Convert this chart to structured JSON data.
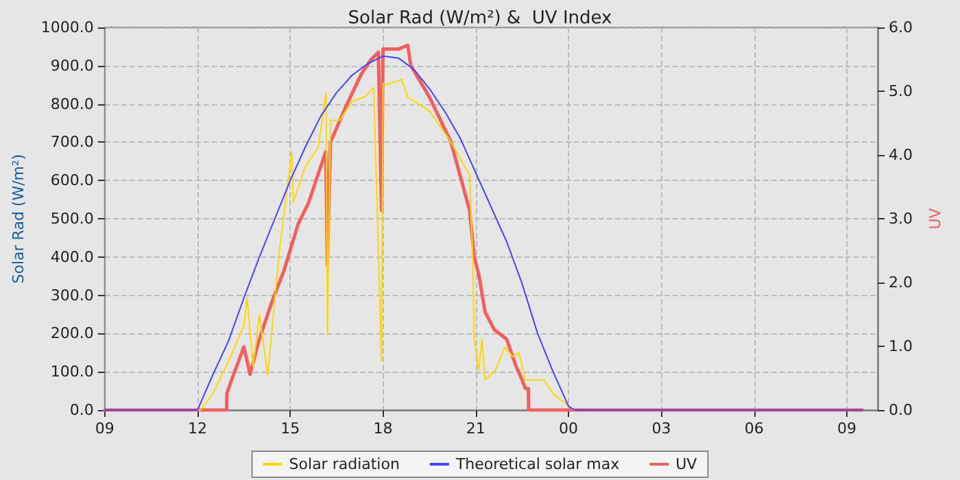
{
  "chart_data": {
    "type": "line",
    "title": "Solar Rad (W/m²) &  UV Index",
    "ylabel": "Solar Rad (W/m²)",
    "y2label": "UV",
    "xlim": [
      9,
      34
    ],
    "xticks": [
      {
        "value": 9,
        "label": "09"
      },
      {
        "value": 12,
        "label": "12"
      },
      {
        "value": 15,
        "label": "15"
      },
      {
        "value": 18,
        "label": "18"
      },
      {
        "value": 21,
        "label": "21"
      },
      {
        "value": 24,
        "label": "00"
      },
      {
        "value": 27,
        "label": "03"
      },
      {
        "value": 30,
        "label": "06"
      },
      {
        "value": 33,
        "label": "09"
      }
    ],
    "ylim": [
      0,
      1000
    ],
    "yticks": [
      {
        "value": 0,
        "label": "0.0"
      },
      {
        "value": 100,
        "label": "100.0"
      },
      {
        "value": 200,
        "label": "200.0"
      },
      {
        "value": 300,
        "label": "300.0"
      },
      {
        "value": 400,
        "label": "400.0"
      },
      {
        "value": 500,
        "label": "500.0"
      },
      {
        "value": 600,
        "label": "600.0"
      },
      {
        "value": 700,
        "label": "700.0"
      },
      {
        "value": 800,
        "label": "800.0"
      },
      {
        "value": 900,
        "label": "900.0"
      },
      {
        "value": 1000,
        "label": "1000.0"
      }
    ],
    "y2lim": [
      0,
      6
    ],
    "y2ticks": [
      {
        "value": 0,
        "label": "0.0"
      },
      {
        "value": 1,
        "label": "1.0"
      },
      {
        "value": 2,
        "label": "2.0"
      },
      {
        "value": 3,
        "label": "3.0"
      },
      {
        "value": 4,
        "label": "4.0"
      },
      {
        "value": 5,
        "label": "5.0"
      },
      {
        "value": 6,
        "label": "6.0"
      }
    ],
    "grid": true,
    "legend": "bottom",
    "marker": "none",
    "series": [
      {
        "name": "Solar radiation",
        "color": "#ffd700",
        "x": [
          9,
          12.1,
          12.5,
          13.07,
          13.5,
          13.6,
          13.8,
          14.0,
          14.27,
          14.66,
          14.9,
          15.05,
          15.1,
          15.5,
          15.9,
          16.16,
          16.2,
          16.3,
          16.6,
          17.0,
          17.4,
          17.7,
          17.95,
          18.0,
          18.1,
          18.6,
          18.8,
          19.5,
          20.2,
          20.8,
          20.9,
          20.95,
          21.1,
          21.2,
          21.3,
          21.64,
          21.94,
          22.2,
          22.4,
          22.6,
          23.2,
          23.5,
          24.1,
          24.2,
          33.5
        ],
        "values": [
          0,
          0,
          43,
          139,
          221,
          293,
          114,
          250,
          93,
          425,
          579,
          675,
          543,
          639,
          686,
          829,
          200,
          757,
          757,
          807,
          818,
          843,
          129,
          854,
          850,
          864,
          818,
          782,
          700,
          614,
          400,
          186,
          104,
          186,
          79,
          104,
          164,
          139,
          150,
          79,
          79,
          43,
          4,
          0,
          0
        ]
      },
      {
        "name": "Theoretical solar max",
        "color": "#4444ff",
        "x": [
          9,
          12,
          12.5,
          13,
          13.5,
          14,
          14.5,
          15,
          15.5,
          16,
          16.5,
          17,
          17.5,
          18,
          18.5,
          19,
          19.5,
          20,
          20.5,
          21,
          21.5,
          22,
          22.5,
          23,
          23.5,
          24,
          24.2,
          33.5
        ],
        "values": [
          0,
          0,
          93,
          180,
          293,
          400,
          500,
          600,
          690,
          770,
          830,
          875,
          905,
          925,
          920,
          890,
          840,
          780,
          710,
          620,
          530,
          440,
          330,
          200,
          100,
          10,
          0,
          0
        ]
      },
      {
        "name": "UV",
        "color": "#f06060",
        "axis": "y2",
        "x": [
          9,
          12.94,
          12.95,
          13.1,
          13.5,
          13.7,
          14.0,
          14.4,
          14.8,
          15.25,
          15.6,
          16.0,
          16.15,
          16.2,
          16.3,
          16.8,
          17.3,
          17.6,
          17.85,
          17.95,
          18.0,
          18.5,
          18.8,
          18.9,
          19.5,
          20.2,
          20.8,
          20.95,
          21.1,
          21.3,
          21.6,
          22.0,
          22.3,
          22.5,
          22.6,
          22.7,
          22.71,
          33.5
        ],
        "values": [
          0,
          0,
          0.26,
          0.47,
          0.99,
          0.56,
          1.11,
          1.69,
          2.19,
          2.91,
          3.26,
          3.84,
          4.05,
          2.27,
          4.2,
          4.76,
          5.27,
          5.49,
          5.61,
          3.13,
          5.66,
          5.66,
          5.72,
          5.4,
          4.91,
          4.2,
          3.13,
          2.4,
          2.12,
          1.54,
          1.26,
          1.11,
          0.69,
          0.47,
          0.34,
          0.34,
          0,
          0
        ]
      }
    ]
  }
}
